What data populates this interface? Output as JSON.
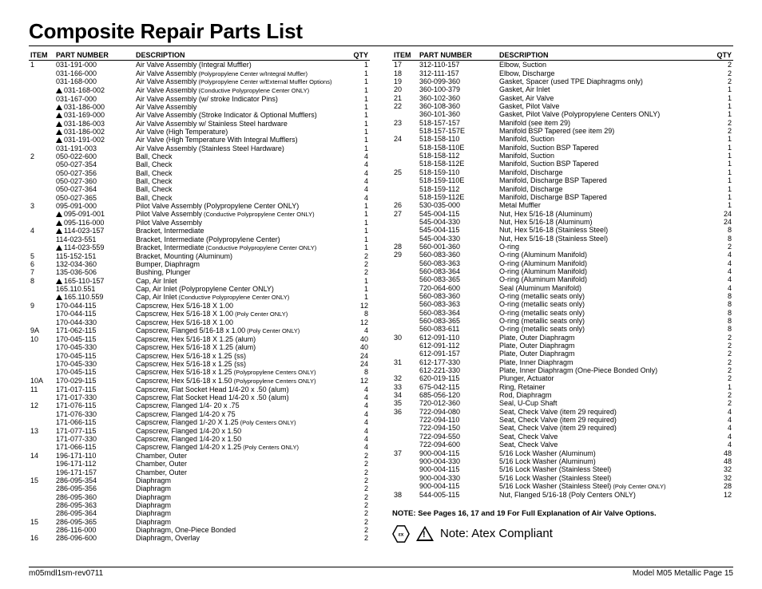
{
  "title": "Composite Repair Parts List",
  "headers": {
    "item": "ITEM",
    "pn": "PART NUMBER",
    "desc": "DESCRIPTION",
    "qty": "QTY"
  },
  "footer": {
    "left": "m05mdl1sm-rev0711",
    "right": "Model M05 Metallic Page 15"
  },
  "note": "NOTE: See Pages 16, 17 and 19 For Full Explanation of Air Valve Options.",
  "atex": "Note: Atex Compliant",
  "left": [
    {
      "i": "1",
      "p": "031-191-000",
      "d": "Air Valve Assembly (Integral Muffler)",
      "q": "1"
    },
    {
      "i": "",
      "p": "031-166-000",
      "d": "Air Valve Assembly",
      "s": "(Polypropylene Center w/Integral Muffler)",
      "q": "1"
    },
    {
      "i": "",
      "p": "031-168-000",
      "d": "Air Valve Assembly",
      "s": "(Polypropylene Center w/External Muffler Options)",
      "q": "1"
    },
    {
      "i": "",
      "p": "031-168-002",
      "t": true,
      "d": "Air Valve Assembly",
      "s": "(Conductive Polypropylene Center ONLY)",
      "q": "1"
    },
    {
      "i": "",
      "p": "031-167-000",
      "d": "Air Valve Assembly (w/ stroke Indicator Pins)",
      "q": "1"
    },
    {
      "i": "",
      "p": "031-186-000",
      "t": true,
      "d": "Air Valve Assembly",
      "q": "1"
    },
    {
      "i": "",
      "p": "031-169-000",
      "t": true,
      "d": "Air Valve Assembly (Stroke Indicator & Optional Mufflers)",
      "q": "1"
    },
    {
      "i": "",
      "p": "031-186-003",
      "t": true,
      "d": "Air Valve Assembly w/ Stainless Steel hardware",
      "q": "1"
    },
    {
      "i": "",
      "p": "031-186-002",
      "t": true,
      "d": "Air Valve (High Temperature)",
      "q": "1"
    },
    {
      "i": "",
      "p": "031-191-002",
      "t": true,
      "d": "Air Valve (High Temperature With Integral Mufflers)",
      "q": "1"
    },
    {
      "i": "",
      "p": "031-191-003",
      "d": "Air Valve Assembly (Stainless Steel Hardware)",
      "q": "1"
    },
    {
      "i": "2",
      "p": "050-022-600",
      "d": "Ball, Check",
      "q": "4"
    },
    {
      "i": "",
      "p": "050-027-354",
      "d": "Ball, Check",
      "q": "4"
    },
    {
      "i": "",
      "p": "050-027-356",
      "d": "Ball, Check",
      "q": "4"
    },
    {
      "i": "",
      "p": "050-027-360",
      "d": "Ball, Check",
      "q": "4"
    },
    {
      "i": "",
      "p": "050-027-364",
      "d": "Ball, Check",
      "q": "4"
    },
    {
      "i": "",
      "p": "050-027-365",
      "d": "Ball, Check",
      "q": "4"
    },
    {
      "i": "3",
      "p": "095-091-000",
      "d": "Pilot Valve Assembly (Polypropylene Center ONLY)",
      "q": "1"
    },
    {
      "i": "",
      "p": "095-091-001",
      "t": true,
      "d": "Pilot Valve Assembly",
      "s": "(Conductive Polypropylene Center ONLY)",
      "q": "1"
    },
    {
      "i": "",
      "p": "095-116-000",
      "t": true,
      "d": "Pilot Valve Assembly",
      "q": "1"
    },
    {
      "i": "4",
      "p": "114-023-157",
      "t": true,
      "d": "Bracket, Intermediate",
      "q": "1"
    },
    {
      "i": "",
      "p": "114-023-551",
      "d": "Bracket, Intermediate (Polypropylene Center)",
      "q": "1"
    },
    {
      "i": "",
      "p": "114-023-559",
      "t": true,
      "d": "Bracket, Intermediate",
      "s": "(Conductive Polypropylene Center ONLY)",
      "q": "1"
    },
    {
      "i": "5",
      "p": "115-152-151",
      "d": "Bracket, Mounting (Aluminum)",
      "q": "2"
    },
    {
      "i": "6",
      "p": "132-034-360",
      "d": "Bumper, Diaphragm",
      "q": "2"
    },
    {
      "i": "7",
      "p": "135-036-506",
      "d": "Bushing, Plunger",
      "q": "2"
    },
    {
      "i": "8",
      "p": "165-110-157",
      "t": true,
      "d": "Cap, Air Inlet",
      "q": "1"
    },
    {
      "i": "",
      "p": "165.110.551",
      "d": "Cap, Air Inlet (Polypropylene Center ONLY)",
      "q": "1"
    },
    {
      "i": "",
      "p": "165.110.559",
      "t": true,
      "d": "Cap, Air Inlet",
      "s": "(Conductive Polypropylene Center ONLY)",
      "q": "1"
    },
    {
      "i": "9",
      "p": "170-044-115",
      "d": "Capscrew, Hex 5/16-18 X 1.00",
      "q": "12"
    },
    {
      "i": "",
      "p": "170-044-115",
      "d": "Capscrew, Hex 5/16-18 X 1.00",
      "s": "(Poly Center ONLY)",
      "q": "8"
    },
    {
      "i": "",
      "p": "170-044-330",
      "d": "Capscrew, Hex 5/16-18 X 1.00",
      "q": "12"
    },
    {
      "i": "9A",
      "p": "171-062-115",
      "d": "Capscrew, Flanged 5/16-18 x 1.00",
      "s": "(Poly Center ONLY)",
      "q": "4"
    },
    {
      "i": "10",
      "p": "170-045-115",
      "d": "Capscrew, Hex 5/16-18 X 1.25 (alum)",
      "q": "40"
    },
    {
      "i": "",
      "p": "170-045-330",
      "d": "Capscrew, Hex 5/16-18 X 1.25 (alum)",
      "q": "40"
    },
    {
      "i": "",
      "p": "170-045-115",
      "d": "Capscrew, Hex 5/16-18 x 1.25 (ss)",
      "q": "24"
    },
    {
      "i": "",
      "p": "170-045-330",
      "d": "Capscrew, Hex 5/16-18 x 1.25 (ss)",
      "q": "24"
    },
    {
      "i": "",
      "p": "170-045-115",
      "d": "Capscrew, Hex 5/16-18 x 1.25",
      "s": "(Polypropylene Centers ONLY)",
      "q": "8"
    },
    {
      "i": "10A",
      "p": "170-029-115",
      "d": "Capscrew, Hex 5/16-18 x 1.50",
      "s": "(Polypropylene Centers ONLY)",
      "q": "12"
    },
    {
      "i": "11",
      "p": "171-017-115",
      "d": "Capscrew, Flat Socket Head 1/4-20 x .50 (alum)",
      "q": "4"
    },
    {
      "i": "",
      "p": "171-017-330",
      "d": "Capscrew, Flat Socket Head 1/4-20 x .50 (alum)",
      "q": "4"
    },
    {
      "i": "12",
      "p": "171-076-115",
      "d": "Capscrew, Flanged 1/4- 20 x .75",
      "q": "4"
    },
    {
      "i": "",
      "p": "171-076-330",
      "d": "Capscrew, Flanged 1/4-20 x 75",
      "q": "4"
    },
    {
      "i": "",
      "p": "171-066-115",
      "d": "Capscrew, Flanged 1/-20 X 1.25",
      "s": "(Poly Centers ONLY)",
      "q": "4"
    },
    {
      "i": "13",
      "p": "171-077-115",
      "d": "Capscrew, Flanged 1/4-20 x 1.50",
      "q": "4"
    },
    {
      "i": "",
      "p": "171-077-330",
      "d": "Capscrew, Flanged 1/4-20 x 1.50",
      "q": "4"
    },
    {
      "i": "",
      "p": "171-066-115",
      "d": "Capscrew, Flanged 1/4-20 x 1.25",
      "s": "(Poly Centers ONLY)",
      "q": "4"
    },
    {
      "i": "14",
      "p": "196-171-110",
      "d": "Chamber, Outer",
      "q": "2"
    },
    {
      "i": "",
      "p": "196-171-112",
      "d": "Chamber, Outer",
      "q": "2"
    },
    {
      "i": "",
      "p": "196-171-157",
      "d": "Chamber, Outer",
      "q": "2"
    },
    {
      "i": "15",
      "p": "286-095-354",
      "d": "Diaphragm",
      "q": "2"
    },
    {
      "i": "",
      "p": "286-095-356",
      "d": "Diaphragm",
      "q": "2"
    },
    {
      "i": "",
      "p": "286-095-360",
      "d": "Diaphragm",
      "q": "2"
    },
    {
      "i": "",
      "p": "286-095-363",
      "d": "Diaphragm",
      "q": "2"
    },
    {
      "i": "",
      "p": "286-095-364",
      "d": "Diaphragm",
      "q": "2"
    },
    {
      "i": "15",
      "p": "286-095-365",
      "d": "Diaphragm",
      "q": "2"
    },
    {
      "i": "",
      "p": "286-116-000",
      "d": "Diaphragm, One-Piece Bonded",
      "q": "2"
    },
    {
      "i": "16",
      "p": "286-096-600",
      "d": "Diaphragm, Overlay",
      "q": "2"
    }
  ],
  "right": [
    {
      "i": "17",
      "p": "312-110-157",
      "d": "Elbow, Suction",
      "q": "2"
    },
    {
      "i": "18",
      "p": "312-111-157",
      "d": "Elbow, Discharge",
      "q": "2"
    },
    {
      "i": "19",
      "p": "360-099-360",
      "d": "Gasket, Spacer (used TPE Diaphragms only)",
      "q": "2"
    },
    {
      "i": "20",
      "p": "360-100-379",
      "d": "Gasket, Air Inlet",
      "q": "1"
    },
    {
      "i": "21",
      "p": "360-102-360",
      "d": "Gasket, Air Valve",
      "q": "1"
    },
    {
      "i": "22",
      "p": "360-108-360",
      "d": "Gasket, Pilot Valve",
      "q": "1"
    },
    {
      "i": "",
      "p": "360-101-360",
      "d": "Gasket, Pilot Valve  (Polypropylene Centers ONLY)",
      "q": "1"
    },
    {
      "i": "23",
      "p": "518-157-157",
      "d": "Manifold (see item 29)",
      "q": "2"
    },
    {
      "i": "",
      "p": "518-157-157E",
      "d": "Manifold  BSP Tapered (see item 29)",
      "q": "2"
    },
    {
      "i": "24",
      "p": "518-158-110",
      "d": "Manifold, Suction",
      "q": "1"
    },
    {
      "i": "",
      "p": "518-158-110E",
      "d": "Manifold, Suction  BSP Tapered",
      "q": "1"
    },
    {
      "i": "",
      "p": "518-158-112",
      "d": "Manifold, Suction",
      "q": "1"
    },
    {
      "i": "",
      "p": "518-158-112E",
      "d": "Manifold, Suction  BSP Tapered",
      "q": "1"
    },
    {
      "i": "25",
      "p": "518-159-110",
      "d": "Manifold, Discharge",
      "q": "1"
    },
    {
      "i": "",
      "p": "518-159-110E",
      "d": "Manifold, Discharge  BSP Tapered",
      "q": "1"
    },
    {
      "i": "",
      "p": "518-159-112",
      "d": "Manifold, Discharge",
      "q": "1"
    },
    {
      "i": "",
      "p": "518-159-112E",
      "d": "Manifold, Discharge  BSP Tapered",
      "q": "1"
    },
    {
      "i": "26",
      "p": "530-035-000",
      "d": "Metal Muffler",
      "q": "1"
    },
    {
      "i": "27",
      "p": "545-004-115",
      "d": "Nut, Hex 5/16-18 (Aluminum)",
      "q": "24"
    },
    {
      "i": "",
      "p": "545-004-330",
      "d": "Nut, Hex 5/16-18 (Aluminum)",
      "q": "24"
    },
    {
      "i": "",
      "p": "545-004-115",
      "d": "Nut, Hex 5/16-18 (Stainless Steel)",
      "q": "8"
    },
    {
      "i": "",
      "p": "545-004-330",
      "d": "Nut, Hex 5/16-18 (Stainless Steel)",
      "q": "8"
    },
    {
      "i": "28",
      "p": "560-001-360",
      "d": "O-ring",
      "q": "2"
    },
    {
      "i": "29",
      "p": "560-083-360",
      "d": "O-ring (Aluminum Manifold)",
      "q": "4"
    },
    {
      "i": "",
      "p": "560-083-363",
      "d": "O-ring (Aluminum Manifold)",
      "q": "4"
    },
    {
      "i": "",
      "p": "560-083-364",
      "d": "O-ring (Aluminum Manifold)",
      "q": "4"
    },
    {
      "i": "",
      "p": "560-083-365",
      "d": "O-ring (Aluminum Manifold)",
      "q": "4"
    },
    {
      "i": "",
      "p": "720-064-600",
      "d": "Seal (Aluminum Manifold)",
      "q": "4"
    },
    {
      "i": "",
      "p": "560-083-360",
      "d": "O-ring (metallic seats only)",
      "q": "8"
    },
    {
      "i": "",
      "p": "560-083-363",
      "d": "O-ring (metallic seats only)",
      "q": "8"
    },
    {
      "i": "",
      "p": "560-083-364",
      "d": "O-ring (metallic seats only)",
      "q": "8"
    },
    {
      "i": "",
      "p": "560-083-365",
      "d": "O-ring (metallic seats only)",
      "q": "8"
    },
    {
      "i": "",
      "p": "560-083-611",
      "d": "O-ring (metallic seats only)",
      "q": "8"
    },
    {
      "i": "30",
      "p": "612-091-110",
      "d": "Plate, Outer Diaphragm",
      "q": "2"
    },
    {
      "i": "",
      "p": "612-091-112",
      "d": "Plate, Outer Diaphragm",
      "q": "2"
    },
    {
      "i": "",
      "p": "612-091-157",
      "d": "Plate, Outer Diaphragm",
      "q": "2"
    },
    {
      "i": "31",
      "p": "612-177-330",
      "d": "Plate, Inner Diaphragm",
      "q": "2"
    },
    {
      "i": "",
      "p": "612-221-330",
      "d": "Plate, Inner Diaphragm (One-Piece Bonded Only)",
      "q": "2"
    },
    {
      "i": "32",
      "p": "620-019-115",
      "d": "Plunger, Actuator",
      "q": "2"
    },
    {
      "i": "33",
      "p": "675-042-115",
      "d": "Ring, Retainer",
      "q": "1"
    },
    {
      "i": "34",
      "p": "685-056-120",
      "d": "Rod, Diaphragm",
      "q": "2"
    },
    {
      "i": "35",
      "p": "720-012-360",
      "d": "Seal, U-Cup Shaft",
      "q": "2"
    },
    {
      "i": "36",
      "p": "722-094-080",
      "d": "Seat, Check Valve (item  29 required)",
      "q": "4"
    },
    {
      "i": "",
      "p": "722-094-110",
      "d": "Seat, Check Valve (item  29 required)",
      "q": "4"
    },
    {
      "i": "",
      "p": "722-094-150",
      "d": "Seat, Check Valve (item  29 required)",
      "q": "4"
    },
    {
      "i": "",
      "p": "722-094-550",
      "d": "Seat, Check Valve",
      "q": "4"
    },
    {
      "i": "",
      "p": "722-094-600",
      "d": "Seat, Check Valve",
      "q": "4"
    },
    {
      "i": "37",
      "p": "900-004-115",
      "d": "5/16 Lock Washer (Aluminum)",
      "q": "48"
    },
    {
      "i": "",
      "p": "900-004-330",
      "d": "5/16 Lock Washer (Aluminum)",
      "q": "48"
    },
    {
      "i": "",
      "p": "900-004-115",
      "d": "5/16 Lock Washer (Stainless Steel)",
      "q": "32"
    },
    {
      "i": "",
      "p": "900-004-330",
      "d": "5/16 Lock Washer (Stainless Steel)",
      "q": "32"
    },
    {
      "i": "",
      "p": "900-004-115",
      "d": "5/16 Lock Washer (Stainless Steel)",
      "s": "(Poly Center ONLY)",
      "q": "28"
    },
    {
      "i": "38",
      "p": "544-005-115",
      "d": "Nut, Flanged 5/16-18 (Poly Centers ONLY)",
      "q": "12"
    }
  ]
}
